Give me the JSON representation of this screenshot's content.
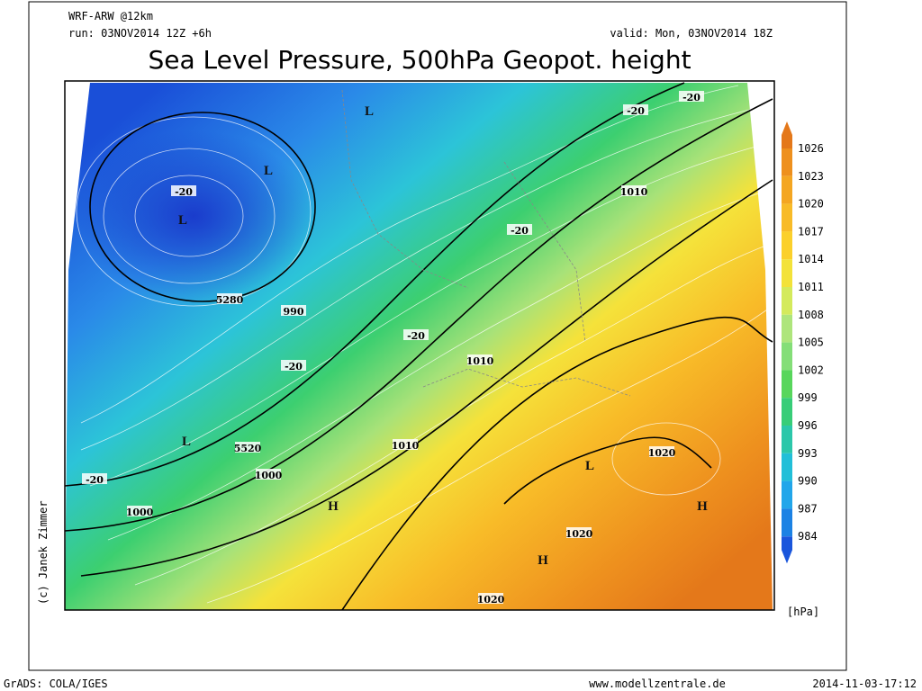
{
  "header": {
    "model": "WRF-ARW @12km",
    "run": "run: 03NOV2014 12Z +6h",
    "valid": "valid: Mon, 03NOV2014 18Z",
    "title": "Sea Level Pressure, 500hPa Geopot. height"
  },
  "map_labels": [
    "L",
    "L",
    "L",
    "L",
    "L",
    "H",
    "H",
    "H",
    "5280",
    "5520",
    "990",
    "1000",
    "1000",
    "1010",
    "1010",
    "1010",
    "1020",
    "1020",
    "1020",
    "-20",
    "-20",
    "-20",
    "-20",
    "-20",
    "-20",
    "-20"
  ],
  "credit": "(c) Janek Zimmer",
  "colorbar": {
    "unit": "[hPa]",
    "labels": [
      1026,
      1023,
      1020,
      1017,
      1014,
      1011,
      1008,
      1005,
      1002,
      999,
      996,
      993,
      990,
      987,
      984
    ],
    "colors": [
      "#e4781a",
      "#ee901e",
      "#f4a622",
      "#f8bb28",
      "#fbd02c",
      "#f3e23a",
      "#d4ea5c",
      "#aee57c",
      "#84de78",
      "#58d65c",
      "#38cd78",
      "#2cc7aa",
      "#22bfd8",
      "#22a6ea",
      "#1c82e4",
      "#1a56dc"
    ]
  },
  "footer": {
    "left": "GrADS: COLA/IGES",
    "center": "www.modellzentrale.de",
    "right": "2014-11-03-17:12"
  }
}
